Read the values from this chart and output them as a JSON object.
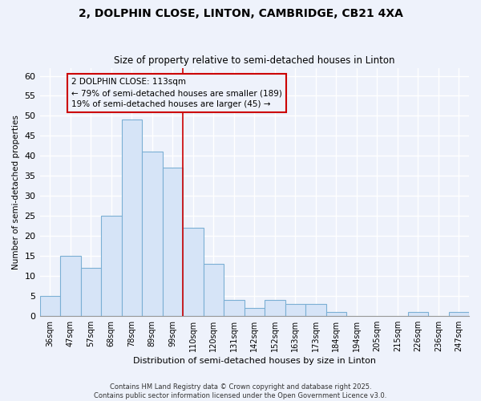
{
  "title_line1": "2, DOLPHIN CLOSE, LINTON, CAMBRIDGE, CB21 4XA",
  "title_line2": "Size of property relative to semi-detached houses in Linton",
  "xlabel": "Distribution of semi-detached houses by size in Linton",
  "ylabel": "Number of semi-detached properties",
  "bar_labels": [
    "36sqm",
    "47sqm",
    "57sqm",
    "68sqm",
    "78sqm",
    "89sqm",
    "99sqm",
    "110sqm",
    "120sqm",
    "131sqm",
    "142sqm",
    "152sqm",
    "163sqm",
    "173sqm",
    "184sqm",
    "194sqm",
    "205sqm",
    "215sqm",
    "226sqm",
    "236sqm",
    "247sqm"
  ],
  "bar_values": [
    5,
    15,
    12,
    25,
    49,
    41,
    37,
    22,
    13,
    4,
    2,
    4,
    3,
    3,
    1,
    0,
    0,
    0,
    1,
    0,
    1
  ],
  "bar_color": "#d6e4f7",
  "bar_edge_color": "#7bafd4",
  "background_color": "#eef2fb",
  "grid_color": "#ffffff",
  "vline_color": "#cc0000",
  "annotation_title": "2 DOLPHIN CLOSE: 113sqm",
  "annotation_line2": "← 79% of semi-detached houses are smaller (189)",
  "annotation_line3": "19% of semi-detached houses are larger (45) →",
  "ylim": [
    0,
    62
  ],
  "yticks": [
    0,
    5,
    10,
    15,
    20,
    25,
    30,
    35,
    40,
    45,
    50,
    55,
    60
  ],
  "footer_line1": "Contains HM Land Registry data © Crown copyright and database right 2025.",
  "footer_line2": "Contains public sector information licensed under the Open Government Licence v3.0."
}
